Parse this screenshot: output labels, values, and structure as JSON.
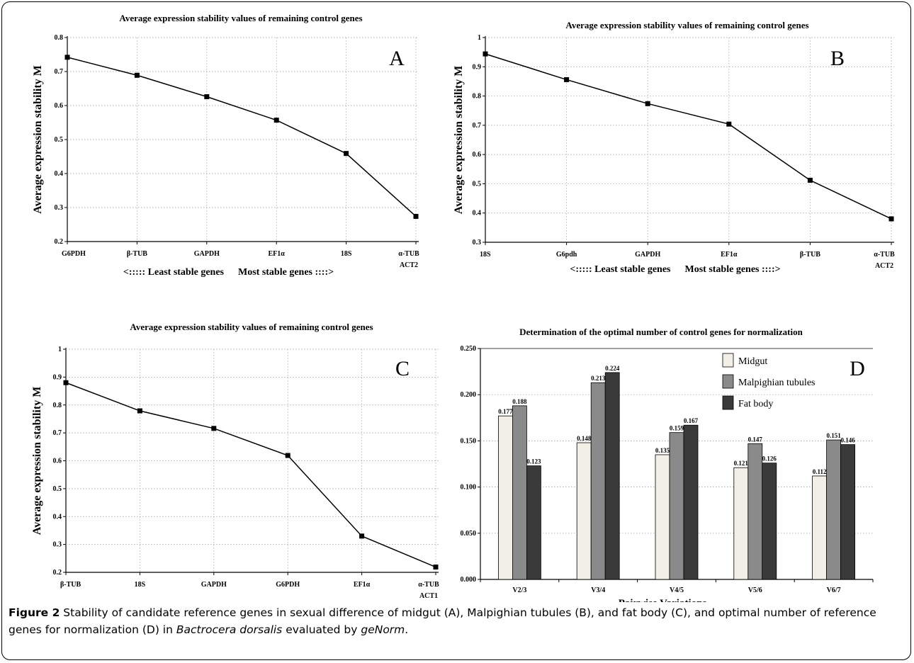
{
  "caption": {
    "label": "Figure 2",
    "text_before": " Stability of candidate reference genes in sexual difference of midgut (A), Malpighian tubules (B), and fat body (C), and optimal number of reference genes for normalization (D) in ",
    "species": "Bactrocera dorsalis",
    "text_middle": " evaluated by ",
    "software": "geNorm",
    "end": "."
  },
  "colors": {
    "line": "#000000",
    "grid": "#9a9a9a",
    "midgut": "#f2f0e6",
    "malpighian": "#8a8a8a",
    "fatbody": "#3a3a3a"
  },
  "chart_data": [
    {
      "id": "A",
      "type": "line",
      "title": "Average expression stability values of remaining control genes",
      "panel_letter": "A",
      "ylabel": "Average expression stability M",
      "ylim": [
        0.2,
        0.8
      ],
      "yticks": [
        "0.2",
        "0.3",
        "0.4",
        "0.5",
        "0.6",
        "0.7",
        "0.8"
      ],
      "categories": [
        [
          "G6PDH"
        ],
        [
          "β-TUB"
        ],
        [
          "GAPDH"
        ],
        [
          "EF1α"
        ],
        [
          "18S"
        ],
        [
          "α-TUB",
          "ACT2"
        ]
      ],
      "values": [
        0.742,
        0.689,
        0.626,
        0.557,
        0.459,
        0.274
      ],
      "note_least": "<::::: Least stable genes",
      "note_most": "Most stable genes ::::>",
      "grid": true
    },
    {
      "id": "B",
      "type": "line",
      "title": "Average expression stability values of remaining control genes",
      "panel_letter": "B",
      "ylabel": "Average expression stability M",
      "ylim": [
        0.3,
        1.0
      ],
      "yticks": [
        "0.3",
        "0.4",
        "0.5",
        "0.6",
        "0.7",
        "0.8",
        "0.9",
        "1"
      ],
      "categories": [
        [
          "18S"
        ],
        [
          "G6pdh"
        ],
        [
          "GAPDH"
        ],
        [
          "EF1α"
        ],
        [
          "β-TUB"
        ],
        [
          "α-TUB",
          "ACT2"
        ]
      ],
      "values": [
        0.944,
        0.856,
        0.774,
        0.704,
        0.512,
        0.38
      ],
      "note_least": "<::::: Least stable genes",
      "note_most": "Most stable genes ::::>",
      "grid": true
    },
    {
      "id": "C",
      "type": "line",
      "title": "Average expression stability values of remaining control genes",
      "panel_letter": "C",
      "ylabel": "Average expression stability M",
      "ylim": [
        0.2,
        1.0
      ],
      "yticks": [
        "0.2",
        "0.3",
        "0.4",
        "0.5",
        "0.6",
        "0.7",
        "0.8",
        "0.9",
        "1"
      ],
      "categories": [
        [
          "β-TUB"
        ],
        [
          "18S"
        ],
        [
          "GAPDH"
        ],
        [
          "G6PDH"
        ],
        [
          "EF1α"
        ],
        [
          "α-TUB",
          "ACT1"
        ]
      ],
      "values": [
        0.88,
        0.779,
        0.716,
        0.619,
        0.33,
        0.219
      ],
      "note_least": "<::::: Least stable genes",
      "note_most": "Most stable genes ::::>",
      "grid": true
    },
    {
      "id": "D",
      "type": "bar",
      "title": "Determination of the optimal number of control genes for normalization",
      "panel_letter": "D",
      "xlabel": "Pairwise Variations",
      "ylim": [
        0,
        0.25
      ],
      "yticks": [
        "0.000",
        "0.050",
        "0.100",
        "0.150",
        "0.200",
        "0.250"
      ],
      "categories": [
        "V2/3",
        "V3/4",
        "V4/5",
        "V5/6",
        "V6/7"
      ],
      "series": [
        {
          "name": "Midgut",
          "values": [
            0.177,
            0.148,
            0.135,
            0.121,
            0.112
          ],
          "labels": [
            "0.177",
            "0.148",
            "0.135",
            "0.121",
            "0.112"
          ]
        },
        {
          "name": "Malpighian tubules",
          "values": [
            0.188,
            0.213,
            0.159,
            0.147,
            0.151
          ],
          "labels": [
            "0.188",
            "0.213",
            "0.159",
            "0.147",
            "0.151"
          ]
        },
        {
          "name": "Fat body",
          "values": [
            0.123,
            0.224,
            0.167,
            0.126,
            0.146
          ],
          "labels": [
            "0.123",
            "0.224",
            "0.167",
            "0.126",
            "0.146"
          ]
        }
      ],
      "legend": "top-right",
      "grid": true
    }
  ]
}
